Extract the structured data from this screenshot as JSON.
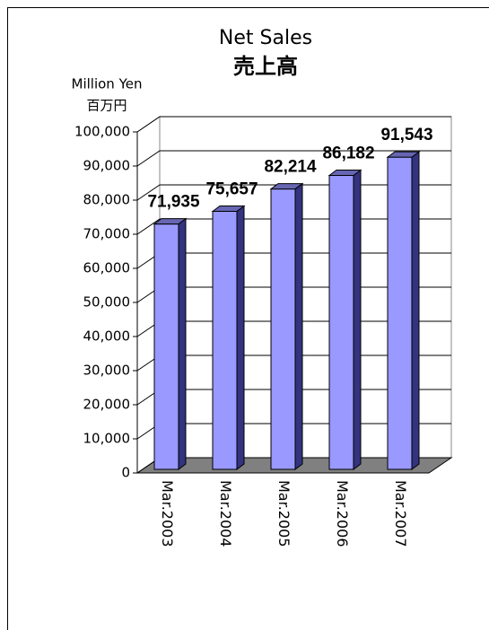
{
  "chart_data": {
    "type": "bar3d",
    "title": "Net Sales",
    "subtitle": "売上高",
    "ylabel": [
      "Million Yen",
      "百万円"
    ],
    "categories": [
      "Mar.2003",
      "Mar.2004",
      "Mar.2005",
      "Mar.2006",
      "Mar.2007"
    ],
    "values": [
      71935,
      75657,
      82214,
      86182,
      91543
    ],
    "value_labels": [
      "71,935",
      "75,657",
      "82,214",
      "86,182",
      "91,543"
    ],
    "color": "#9999ff",
    "ylim": [
      0,
      100000
    ],
    "yticks": [
      0,
      {
        "value": 10000,
        "label": "10,000"
      },
      {
        "value": 20000,
        "label": "20,000"
      },
      {
        "value": 30000,
        "label": "30,000"
      },
      {
        "value": 40000,
        "label": "40,000"
      },
      {
        "value": 50000,
        "label": "50,000"
      },
      {
        "value": 60000,
        "label": "60,000"
      },
      {
        "value": 70000,
        "label": "70,000"
      },
      {
        "value": 80000,
        "label": "80,000"
      },
      {
        "value": 90000,
        "label": "90,000"
      },
      {
        "value": 100000,
        "label": "100,000"
      }
    ],
    "grid": true
  }
}
